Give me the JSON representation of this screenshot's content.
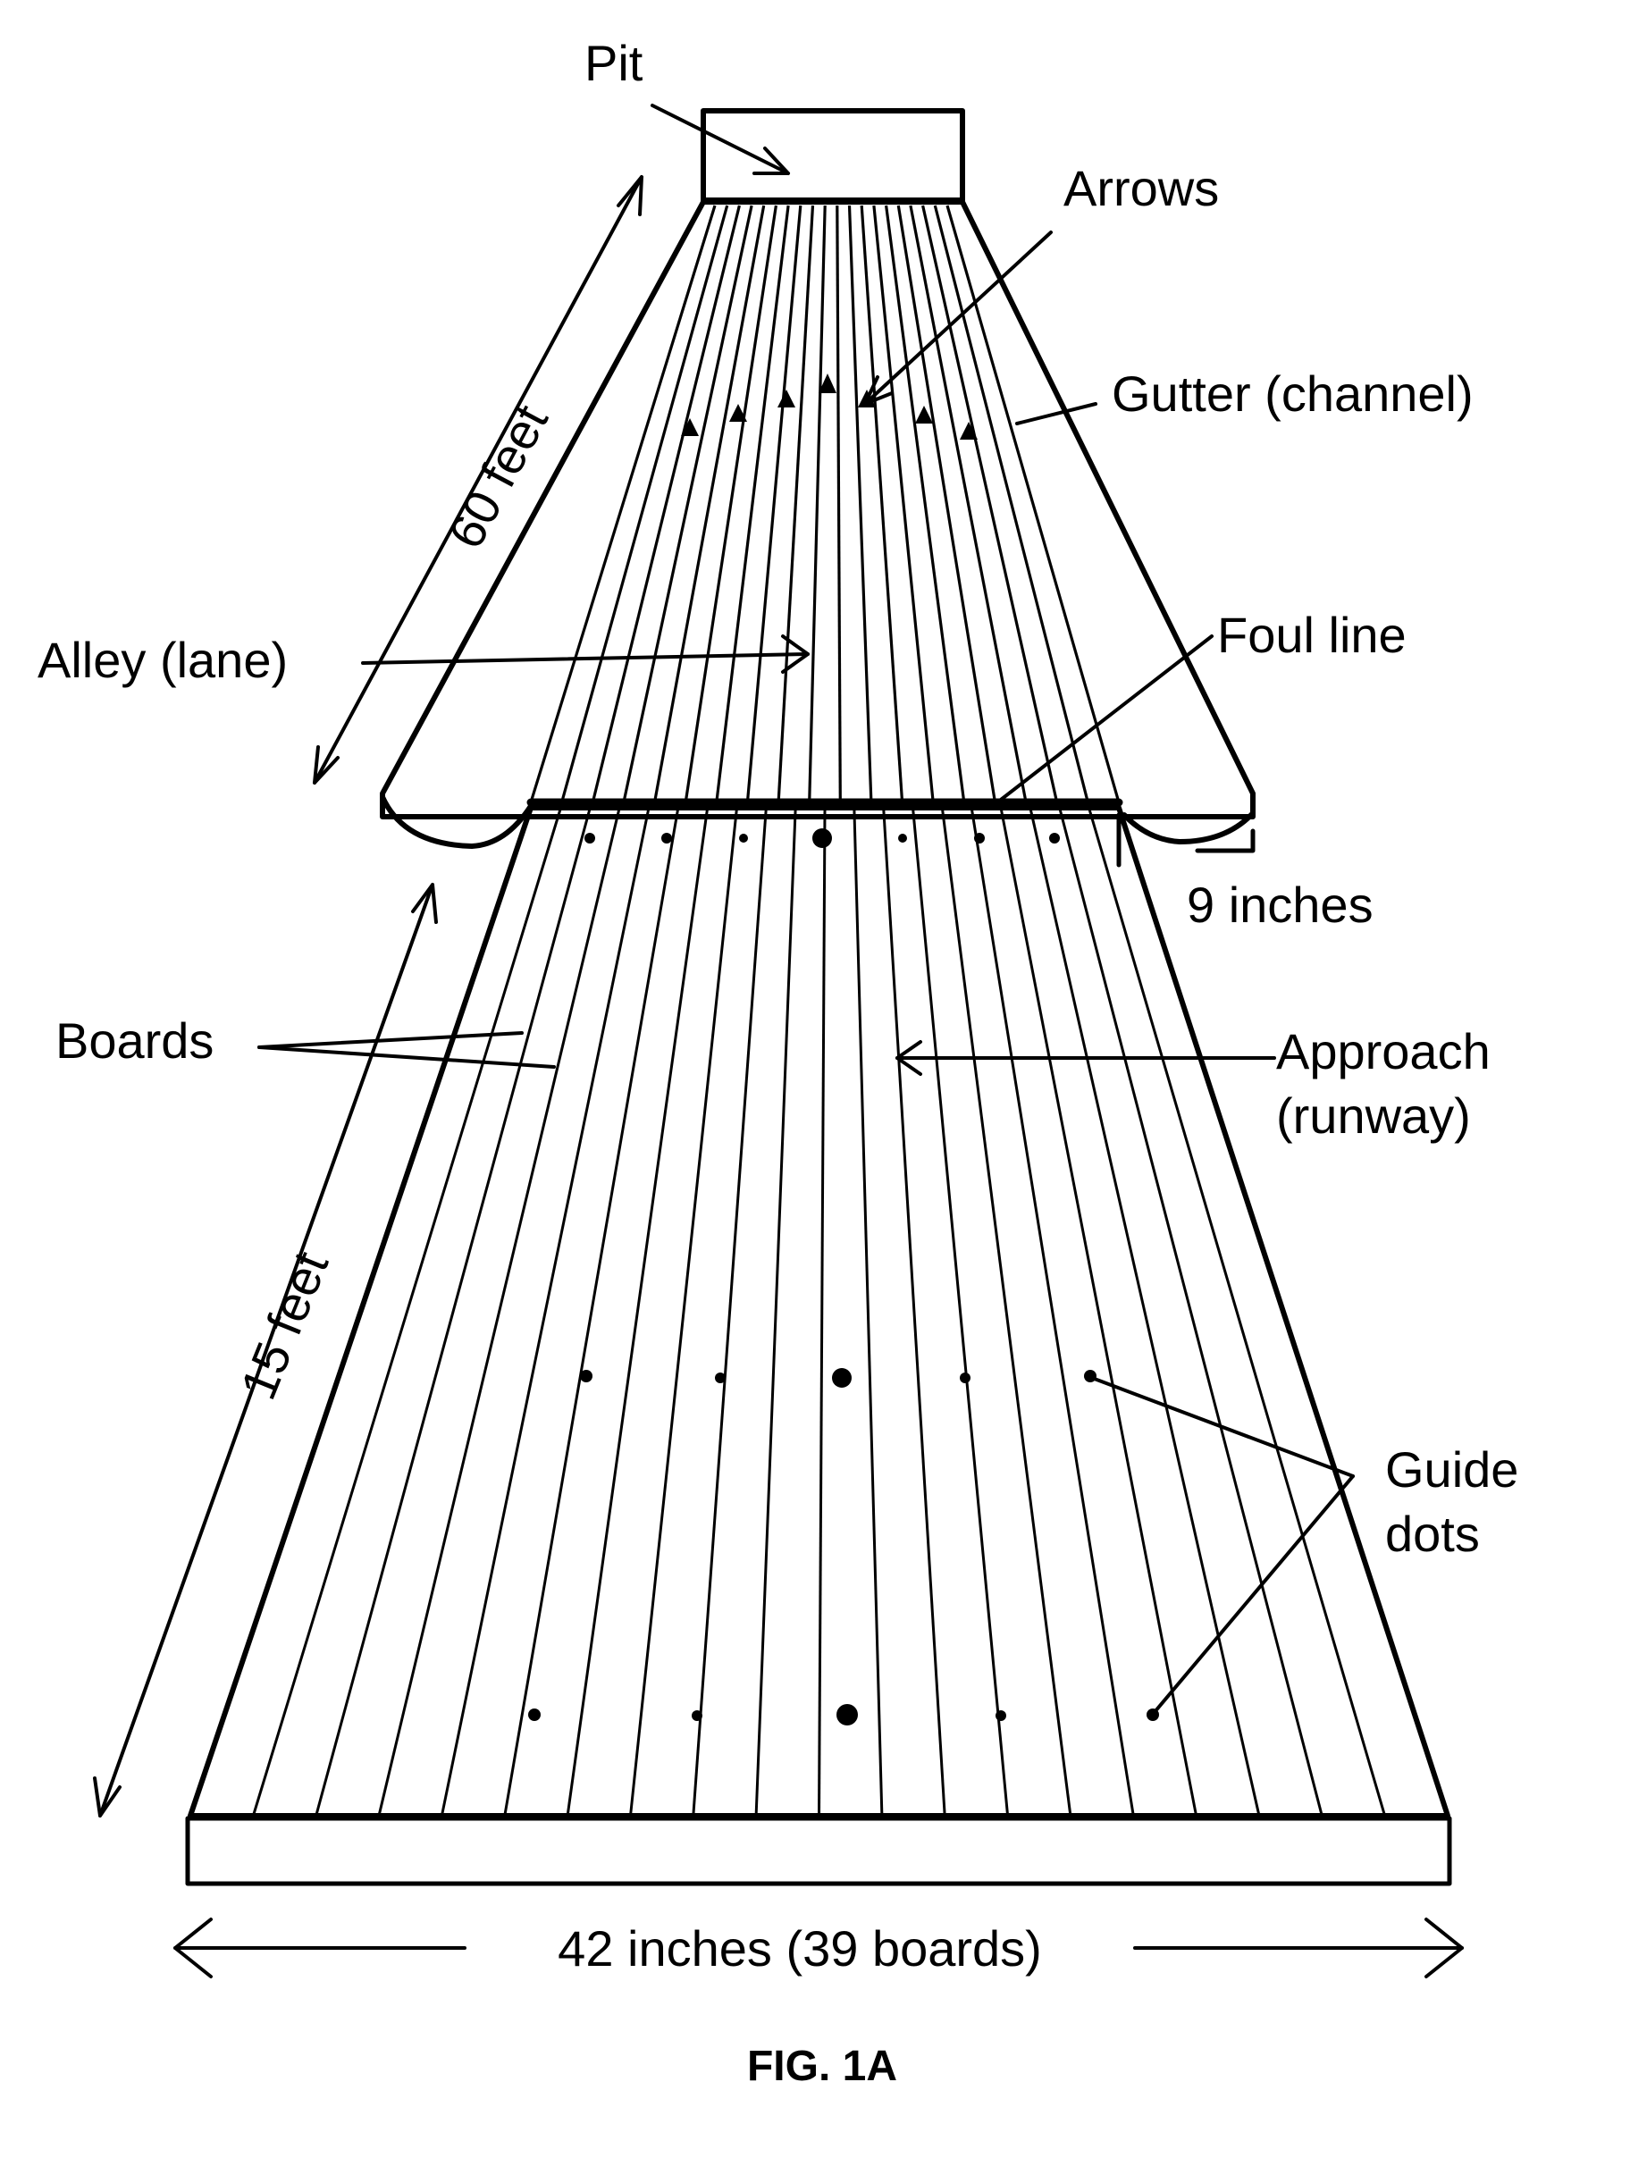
{
  "figure": {
    "caption": "FIG. 1A",
    "ink_color": "#000000",
    "background_color": "#ffffff"
  },
  "labels": {
    "pit": "Pit",
    "arrows": "Arrows",
    "gutter": "Gutter (channel)",
    "lane_length": "60 feet",
    "alley": "Alley (lane)",
    "foul_line": "Foul line",
    "gutter_width": "9 inches",
    "boards": "Boards",
    "approach_line1": "Approach",
    "approach_line2": "(runway)",
    "approach_length": "15 feet",
    "guide_dots_line1": "Guide",
    "guide_dots_line2": "dots",
    "width": "42 inches (39 boards)"
  }
}
